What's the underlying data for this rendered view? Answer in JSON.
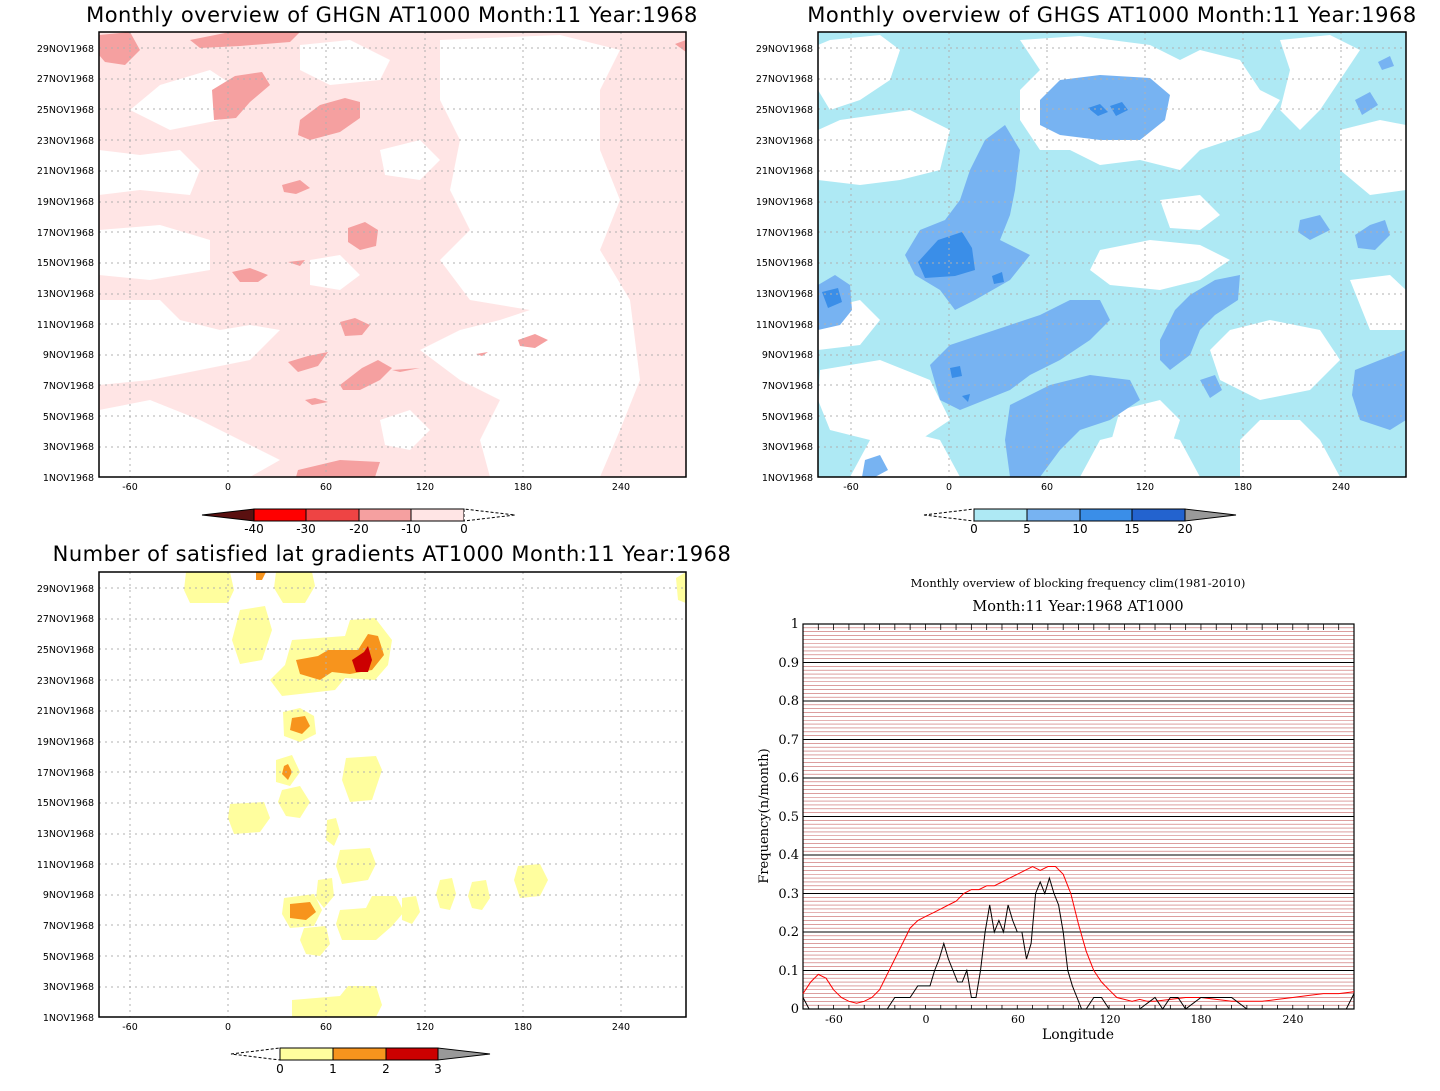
{
  "panels": {
    "ghgn": {
      "title": "Monthly overview of GHGN AT1000 Month:11 Year:1968",
      "x_ticks": [
        "-60",
        "0",
        "60",
        "120",
        "180",
        "240"
      ],
      "y_ticks": [
        "1NOV1968",
        "3NOV1968",
        "5NOV1968",
        "7NOV1968",
        "9NOV1968",
        "11NOV1968",
        "13NOV1968",
        "15NOV1968",
        "17NOV1968",
        "19NOV1968",
        "21NOV1968",
        "23NOV1968",
        "25NOV1968",
        "27NOV1968",
        "29NOV1968"
      ],
      "colorbar": {
        "labels": [
          "-40",
          "-30",
          "-20",
          "-10",
          "0"
        ],
        "colors": [
          "#ff0000",
          "#ee4444",
          "#f5a0a0",
          "#ffe5e5"
        ],
        "under_color": "#5a1010"
      }
    },
    "ghgs": {
      "title": "Monthly overview of GHGS AT1000 Month:11 Year:1968",
      "x_ticks": [
        "-60",
        "0",
        "60",
        "120",
        "180",
        "240"
      ],
      "y_ticks": [
        "1NOV1968",
        "3NOV1968",
        "5NOV1968",
        "7NOV1968",
        "9NOV1968",
        "11NOV1968",
        "13NOV1968",
        "15NOV1968",
        "17NOV1968",
        "19NOV1968",
        "21NOV1968",
        "23NOV1968",
        "25NOV1968",
        "27NOV1968",
        "29NOV1968"
      ],
      "colorbar": {
        "labels": [
          "0",
          "5",
          "10",
          "15",
          "20"
        ],
        "colors": [
          "#aee9f4",
          "#77b3f2",
          "#3a8ee8",
          "#2363cf"
        ],
        "over_color": "#999999"
      }
    },
    "gradients": {
      "title": "Number of satisfied lat gradients AT1000 Month:11 Year:1968",
      "x_ticks": [
        "-60",
        "0",
        "60",
        "120",
        "180",
        "240"
      ],
      "y_ticks": [
        "1NOV1968",
        "3NOV1968",
        "5NOV1968",
        "7NOV1968",
        "9NOV1968",
        "11NOV1968",
        "13NOV1968",
        "15NOV1968",
        "17NOV1968",
        "19NOV1968",
        "21NOV1968",
        "23NOV1968",
        "25NOV1968",
        "27NOV1968",
        "29NOV1968"
      ],
      "colorbar": {
        "labels": [
          "0",
          "1",
          "2",
          "3"
        ],
        "colors": [
          "#fffe9e",
          "#f7941d",
          "#cc0000"
        ],
        "over_color": "#999999"
      }
    }
  },
  "line_chart": {
    "title": "Monthly overview of blocking frequency clim(1981-2010)",
    "subtitle": "Month:11 Year:1968  AT1000",
    "xlabel": "Longitude",
    "ylabel": "Frequency(n/month)",
    "x_ticks": [
      "-60",
      "0",
      "60",
      "120",
      "180",
      "240"
    ],
    "y_ticks": [
      "0",
      "0.1",
      "0.2",
      "0.3",
      "0.4",
      "0.5",
      "0.6",
      "0.7",
      "0.8",
      "0.9",
      "1"
    ]
  },
  "chart_data": [
    {
      "type": "heatmap",
      "title": "Monthly overview of GHGN AT1000 Month:11 Year:1968",
      "xlim": [
        -80,
        280
      ],
      "x_ticks": [
        -60,
        0,
        60,
        120,
        180,
        240
      ],
      "y_ticks": [
        "1NOV1968",
        "3NOV1968",
        "5NOV1968",
        "7NOV1968",
        "9NOV1968",
        "11NOV1968",
        "13NOV1968",
        "15NOV1968",
        "17NOV1968",
        "19NOV1968",
        "21NOV1968",
        "23NOV1968",
        "25NOV1968",
        "27NOV1968",
        "29NOV1968"
      ],
      "levels": [
        -40,
        -30,
        -20,
        -10,
        0
      ],
      "grid": true
    },
    {
      "type": "heatmap",
      "title": "Monthly overview of GHGS AT1000 Month:11 Year:1968",
      "xlim": [
        -80,
        280
      ],
      "x_ticks": [
        -60,
        0,
        60,
        120,
        180,
        240
      ],
      "y_ticks": [
        "1NOV1968",
        "3NOV1968",
        "5NOV1968",
        "7NOV1968",
        "9NOV1968",
        "11NOV1968",
        "13NOV1968",
        "15NOV1968",
        "17NOV1968",
        "19NOV1968",
        "21NOV1968",
        "23NOV1968",
        "25NOV1968",
        "27NOV1968",
        "29NOV1968"
      ],
      "levels": [
        0,
        5,
        10,
        15,
        20
      ],
      "grid": true
    },
    {
      "type": "heatmap",
      "title": "Number of satisfied lat gradients AT1000 Month:11 Year:1968",
      "xlim": [
        -80,
        280
      ],
      "x_ticks": [
        -60,
        0,
        60,
        120,
        180,
        240
      ],
      "y_ticks": [
        "1NOV1968",
        "3NOV1968",
        "5NOV1968",
        "7NOV1968",
        "9NOV1968",
        "11NOV1968",
        "13NOV1968",
        "15NOV1968",
        "17NOV1968",
        "19NOV1968",
        "21NOV1968",
        "23NOV1968",
        "25NOV1968",
        "27NOV1968",
        "29NOV1968"
      ],
      "levels": [
        0,
        1,
        2,
        3
      ],
      "grid": true
    },
    {
      "type": "line",
      "title": "Monthly overview of blocking frequency clim(1981-2010)",
      "subtitle": "Month:11 Year:1968  AT1000",
      "xlabel": "Longitude",
      "ylabel": "Frequency(n/month)",
      "xlim": [
        -80,
        280
      ],
      "ylim": [
        0,
        1
      ],
      "grid": true,
      "series": [
        {
          "color": "#ff0000",
          "x": [
            -80,
            -75,
            -70,
            -65,
            -60,
            -55,
            -50,
            -45,
            -40,
            -35,
            -30,
            -25,
            -20,
            -15,
            -10,
            -5,
            0,
            5,
            10,
            15,
            20,
            25,
            30,
            35,
            40,
            45,
            50,
            55,
            60,
            65,
            70,
            75,
            80,
            85,
            90,
            95,
            100,
            105,
            110,
            115,
            120,
            125,
            130,
            135,
            140,
            145,
            150,
            160,
            170,
            180,
            190,
            200,
            210,
            220,
            230,
            240,
            250,
            260,
            270,
            280
          ],
          "y": [
            0.04,
            0.07,
            0.09,
            0.08,
            0.05,
            0.03,
            0.02,
            0.015,
            0.02,
            0.03,
            0.05,
            0.09,
            0.13,
            0.17,
            0.21,
            0.23,
            0.24,
            0.25,
            0.26,
            0.27,
            0.28,
            0.3,
            0.31,
            0.31,
            0.32,
            0.32,
            0.33,
            0.34,
            0.35,
            0.36,
            0.37,
            0.36,
            0.37,
            0.37,
            0.35,
            0.3,
            0.22,
            0.15,
            0.1,
            0.07,
            0.05,
            0.03,
            0.025,
            0.02,
            0.025,
            0.02,
            0.02,
            0.025,
            0.03,
            0.03,
            0.025,
            0.02,
            0.02,
            0.02,
            0.025,
            0.03,
            0.035,
            0.04,
            0.04,
            0.045
          ]
        },
        {
          "color": "#000000",
          "x": [
            -80,
            -76,
            -72,
            -60,
            -50,
            -40,
            -30,
            -25,
            -20,
            -15,
            -10,
            -5,
            0,
            3,
            6,
            9,
            12,
            15,
            18,
            21,
            24,
            27,
            30,
            33,
            36,
            39,
            42,
            45,
            48,
            51,
            54,
            57,
            60,
            63,
            66,
            69,
            72,
            75,
            78,
            81,
            84,
            87,
            90,
            93,
            96,
            99,
            102,
            105,
            110,
            115,
            120,
            130,
            140,
            150,
            155,
            160,
            165,
            170,
            180,
            190,
            200,
            210,
            220,
            240,
            260,
            275,
            280
          ],
          "y": [
            0.03,
            0.0,
            0.0,
            0.0,
            0.0,
            0.0,
            0.0,
            0.0,
            0.03,
            0.03,
            0.03,
            0.06,
            0.06,
            0.06,
            0.1,
            0.13,
            0.17,
            0.13,
            0.1,
            0.07,
            0.07,
            0.1,
            0.03,
            0.03,
            0.1,
            0.2,
            0.27,
            0.2,
            0.23,
            0.2,
            0.27,
            0.23,
            0.2,
            0.2,
            0.13,
            0.17,
            0.3,
            0.33,
            0.3,
            0.34,
            0.3,
            0.27,
            0.2,
            0.1,
            0.06,
            0.03,
            0.0,
            0.0,
            0.03,
            0.03,
            0.0,
            0.0,
            0.0,
            0.03,
            0.0,
            0.03,
            0.03,
            0.0,
            0.03,
            0.03,
            0.03,
            0.0,
            0.0,
            0.0,
            0.0,
            0.0,
            0.04
          ]
        }
      ]
    }
  ]
}
